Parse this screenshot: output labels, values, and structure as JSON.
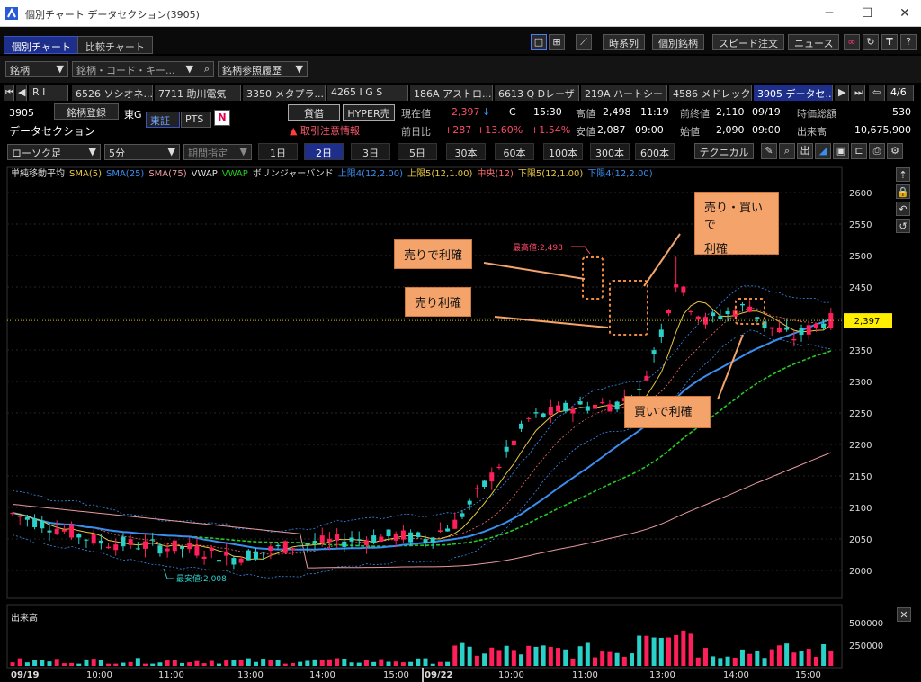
{
  "window": {
    "title": "個別チャート データセクション(3905)",
    "minimize": "─",
    "maximize": "☐",
    "close": "✕"
  },
  "top_tabs": [
    "個別チャート",
    "比較チャート"
  ],
  "toolbar_right": [
    "時系列",
    "個別銘柄",
    "スピード注文",
    "ニュース"
  ],
  "search": {
    "label": "銘柄",
    "placeholder": "銘柄・コード・キー...",
    "history": "銘柄参照履歴"
  },
  "stock_tabs": [
    "R I",
    "6526 ソシオネ...",
    "7711 助川電気",
    "3350 メタプラ...",
    "4265 I G S",
    "186A アストロ...",
    "6613 Q Dレーザ",
    "219A ハートシード",
    "4586 メドレック",
    "3905 データセ..."
  ],
  "page_indicator": "4/6",
  "stock": {
    "code": "3905",
    "name": "データセクション",
    "register": "銘柄登録",
    "market_prefix": "東G",
    "market": "東証",
    "pts": "PTS",
    "lend": "貸借",
    "hyper": "HYPER売",
    "warning": "取引注意情報"
  },
  "quote": {
    "current_label": "現在値",
    "current": "2,397",
    "arrow": "↓",
    "c": "C",
    "time": "15:30",
    "prev_label": "前日比",
    "change": "+287",
    "change_pct": "+13.60%",
    "change2": "+1.54%",
    "high_label": "高値",
    "high": "2,498",
    "high_time": "11:19",
    "low_label": "安値",
    "low": "2,087",
    "low_time": "09:00",
    "prevclose_label": "前終値",
    "prevclose": "2,110",
    "prevclose_date": "09/19",
    "open_label": "始値",
    "open": "2,090",
    "open_time": "09:00",
    "mcap_label": "時価総額",
    "mcap": "530",
    "vol_label": "出来高",
    "volume": "10,675,900"
  },
  "chart_controls": {
    "type": "ローソク足",
    "interval": "5分",
    "period": "期間指定",
    "periods": [
      "1日",
      "2日",
      "3日",
      "5日",
      "30本",
      "60本",
      "100本",
      "300本",
      "600本"
    ],
    "technical": "テクニカル"
  },
  "indicators": [
    {
      "label": "単純移動平均",
      "color": "#dddddd"
    },
    {
      "label": "SMA(5)",
      "color": "#e8c840"
    },
    {
      "label": "SMA(25)",
      "color": "#3a8ef0"
    },
    {
      "label": "SMA(75)",
      "color": "#e89aa0"
    },
    {
      "label": "VWAP",
      "color": "#dddddd"
    },
    {
      "label": "VWAP",
      "color": "#22cc22"
    },
    {
      "label": "ボリンジャーバンド",
      "color": "#dddddd"
    },
    {
      "label": "上限4(12,2.00)",
      "color": "#3a8ef0"
    },
    {
      "label": "上限5(12,1.00)",
      "color": "#e8c840"
    },
    {
      "label": "中央(12)",
      "color": "#ff6b6b"
    },
    {
      "label": "下限5(12,1.00)",
      "color": "#e8c840"
    },
    {
      "label": "下限4(12,2.00)",
      "color": "#3a8ef0"
    }
  ],
  "annotations": {
    "high": "最高値:2,498",
    "low": "最安値:2,008",
    "price_tag": "2,397",
    "callout_sell_profit": "売りで利確",
    "callout_sell": "売り利確",
    "callout_both_1": "売り・買いで",
    "callout_both_2": "利確",
    "callout_buy": "買いで利確"
  },
  "volume_label": "出来高",
  "chart_data": {
    "type": "candlestick",
    "y_ticks": [
      2600,
      2550,
      2500,
      2450,
      2400,
      2350,
      2300,
      2250,
      2200,
      2150,
      2100,
      2050,
      2000
    ],
    "ylim": [
      1970,
      2620
    ],
    "vol_ticks": [
      "500000",
      "250000"
    ],
    "x_labels": [
      "09/19",
      "10:00",
      "11:00",
      "13:00",
      "14:00",
      "15:00",
      "09/22",
      "10:00",
      "11:00",
      "13:00",
      "14:00",
      "15:00"
    ],
    "last_price": 2397,
    "high": 2498,
    "low": 2008
  },
  "colors": {
    "up": "#ff1f5a",
    "down": "#2ad1c9",
    "accent": "#1d2f8a",
    "callout": "#f4a46b"
  }
}
